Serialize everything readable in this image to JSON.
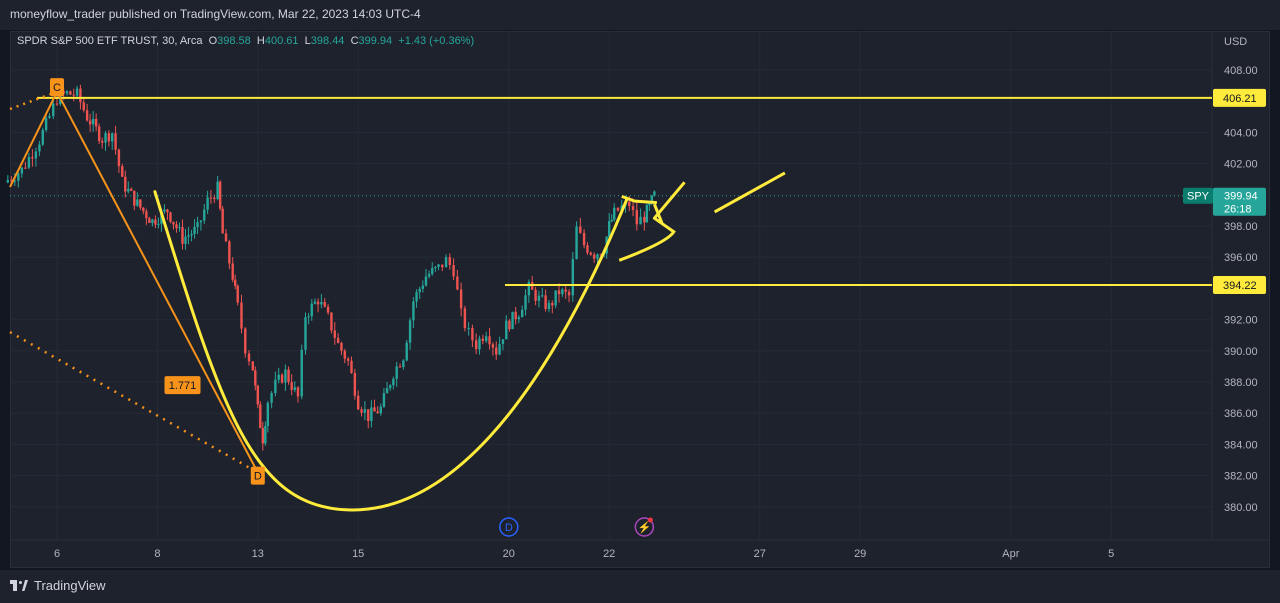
{
  "header": {
    "publisher_line": "moneyflow_trader published on TradingView.com, Mar 22, 2023 14:03 UTC-4"
  },
  "legend": {
    "symbol_line": "SPDR S&P 500 ETF TRUST, 30, Arca",
    "o_label": "O",
    "o_value": "398.58",
    "h_label": "H",
    "h_value": "400.61",
    "l_label": "L",
    "l_value": "398.44",
    "c_label": "C",
    "c_value": "399.94",
    "change": "+1.43 (+0.36%)"
  },
  "footer": {
    "brand": "TradingView"
  },
  "colors": {
    "up": "#26a69a",
    "down": "#ef5350",
    "drawing": "#ffeb3b",
    "pattern": "#f7931a",
    "background": "#131722",
    "panel": "#1e222d"
  },
  "chart_data": {
    "type": "candlestick",
    "title": "SPDR S&P 500 ETF TRUST, 30, Arca",
    "currency": "USD",
    "ylim": [
      379,
      409
    ],
    "y_ticks": [
      "408.00",
      "404.00",
      "402.00",
      "398.00",
      "396.00",
      "392.00",
      "390.00",
      "388.00",
      "386.00",
      "384.00",
      "382.00",
      "380.00"
    ],
    "x_ticks": [
      {
        "label": "6",
        "day": 6
      },
      {
        "label": "8",
        "day": 8
      },
      {
        "label": "13",
        "day": 10
      },
      {
        "label": "15",
        "day": 12
      },
      {
        "label": "20",
        "day": 15
      },
      {
        "label": "22",
        "day": 17
      },
      {
        "label": "27",
        "day": 20
      },
      {
        "label": "29",
        "day": 22
      },
      {
        "label": "Apr",
        "day": 25
      },
      {
        "label": "5",
        "day": 27
      }
    ],
    "price_tags": [
      {
        "label": "406.21",
        "value": 406.21,
        "kind": "horizontal-line"
      },
      {
        "label": "394.22",
        "value": 394.22,
        "kind": "horizontal-line"
      },
      {
        "label": "399.94",
        "value": 399.94,
        "kind": "last-price",
        "symbol": "SPY",
        "countdown": "26:18"
      }
    ],
    "pattern_labels": [
      {
        "label": "C",
        "day": 6.0,
        "price": 406.9
      },
      {
        "label": "D",
        "day": 10.0,
        "price": 382.0
      },
      {
        "label": "1.771",
        "day": 8.5,
        "price": 387.8
      }
    ],
    "event_markers": [
      {
        "label": "D",
        "kind": "dividend",
        "day": 15.0
      },
      {
        "label": "⚡",
        "kind": "earnings",
        "day": 17.7
      }
    ],
    "series": [
      {
        "name": "SPY",
        "ohlc_anchors": [
          [
            4.95,
            400.8
          ],
          [
            5.3,
            401.6
          ],
          [
            5.65,
            403.5
          ],
          [
            5.85,
            405.0
          ],
          [
            6.0,
            406.2
          ],
          [
            6.2,
            406.5
          ],
          [
            6.4,
            406.4
          ],
          [
            6.6,
            405.0
          ],
          [
            6.9,
            403.6
          ],
          [
            7.1,
            404.0
          ],
          [
            7.3,
            400.8
          ],
          [
            7.6,
            399.4
          ],
          [
            7.9,
            398.3
          ],
          [
            8.2,
            399.0
          ],
          [
            8.5,
            397.2
          ],
          [
            8.8,
            397.8
          ],
          [
            9.0,
            399.6
          ],
          [
            9.2,
            400.4
          ],
          [
            9.3,
            397.5
          ],
          [
            9.5,
            394.8
          ],
          [
            9.6,
            392.8
          ],
          [
            9.75,
            390.2
          ],
          [
            9.9,
            388.9
          ],
          [
            10.0,
            386.2
          ],
          [
            10.1,
            384.4
          ],
          [
            10.2,
            386.8
          ],
          [
            10.35,
            387.8
          ],
          [
            10.55,
            388.6
          ],
          [
            10.8,
            387.0
          ],
          [
            10.95,
            392.3
          ],
          [
            11.2,
            393.3
          ],
          [
            11.4,
            392.1
          ],
          [
            11.6,
            390.4
          ],
          [
            11.8,
            389.3
          ],
          [
            12.0,
            386.7
          ],
          [
            12.2,
            385.8
          ],
          [
            12.45,
            386.3
          ],
          [
            12.7,
            388.6
          ],
          [
            12.9,
            389.7
          ],
          [
            13.1,
            393.2
          ],
          [
            13.35,
            394.8
          ],
          [
            13.6,
            395.3
          ],
          [
            13.75,
            395.8
          ],
          [
            13.9,
            395.2
          ],
          [
            14.05,
            392.3
          ],
          [
            14.2,
            391.1
          ],
          [
            14.35,
            390.4
          ],
          [
            14.55,
            391.3
          ],
          [
            14.75,
            390.0
          ],
          [
            14.95,
            391.6
          ],
          [
            15.2,
            392.5
          ],
          [
            15.4,
            394.0
          ],
          [
            15.6,
            393.3
          ],
          [
            15.8,
            392.8
          ],
          [
            16.0,
            393.8
          ],
          [
            16.2,
            393.5
          ],
          [
            16.35,
            397.8
          ],
          [
            16.5,
            396.8
          ],
          [
            16.7,
            396.2
          ],
          [
            16.9,
            396.6
          ],
          [
            17.0,
            398.0
          ],
          [
            17.1,
            398.8
          ],
          [
            17.25,
            399.2
          ],
          [
            17.4,
            399.4
          ],
          [
            17.55,
            398.2
          ],
          [
            17.7,
            398.6
          ],
          [
            17.8,
            399.2
          ],
          [
            17.9,
            399.94
          ]
        ]
      }
    ],
    "grid": true
  }
}
